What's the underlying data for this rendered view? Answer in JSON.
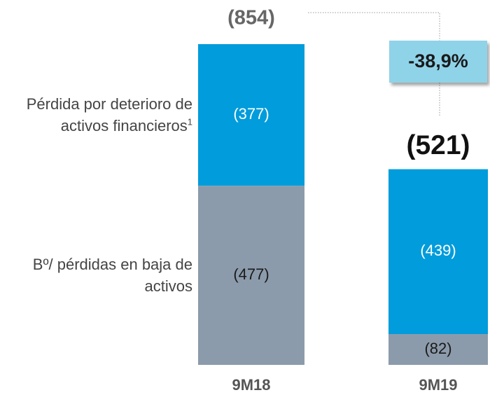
{
  "chart_data": {
    "type": "stacked-bar",
    "categories": [
      "9M18",
      "9M19"
    ],
    "series": [
      {
        "name": "Bº/ pérdidas en baja de activos",
        "color": "#8c9bab",
        "label_color": "#1a1a1a",
        "values": [
          -477,
          -82
        ],
        "value_labels": [
          "(477)",
          "(82)"
        ]
      },
      {
        "name": "Pérdida por deterioro de activos financieros",
        "name_note": "1",
        "color": "#009cdb",
        "label_color": "#ffffff",
        "values": [
          -377,
          -439
        ],
        "value_labels": [
          "(377)",
          "(439)"
        ]
      }
    ],
    "totals": [
      -854,
      -521
    ],
    "total_labels": [
      "(854)",
      "(521)"
    ],
    "change_label": "-38,9%"
  }
}
